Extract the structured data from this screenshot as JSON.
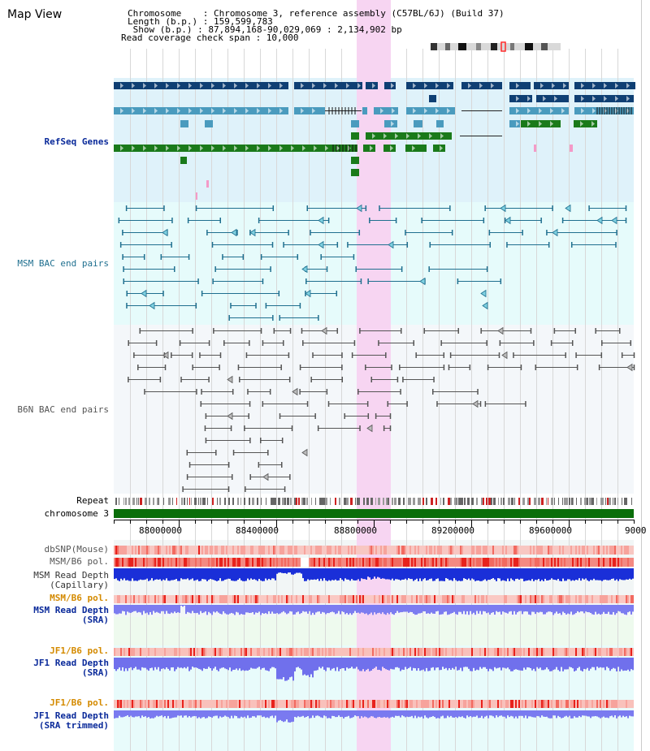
{
  "view_title": "Map View",
  "header": {
    "chromosome_line": "Chromosome    : Chromosome 3, reference assembly (C57BL/6J) (Build 37)",
    "length_line": "Length (b.p.) : 159,599,783",
    "show_line": " Show (b.p.) : 87,894,168-90,029,069 : 2,134,902 bp",
    "coverage_line": "Read coverage check span : 10,000"
  },
  "track_labels": {
    "refseq": "RefSeq Genes",
    "msm_bac": "MSM BAC end pairs",
    "b6n_bac": "B6N BAC end pairs",
    "repeat": "Repeat",
    "chromosome": "chromosome 3",
    "dbsnp": "dbSNP(Mouse)",
    "msm_b6_pol": "MSM/B6 pol.",
    "msm_depth_cap_1": "MSM Read Depth",
    "msm_depth_cap_2": "(Capillary)",
    "msm_b6_pol_2": "MSM/B6 pol.",
    "msm_depth_sra_1": "MSM Read Depth",
    "msm_depth_sra_2": "(SRA)",
    "jf1_b6_pol": "JF1/B6 pol.",
    "jf1_depth_sra_1": "JF1 Read Depth",
    "jf1_depth_sra_2": "(SRA)",
    "jf1_b6_pol_2": "JF1/B6 pol.",
    "jf1_depth_trim_1": "JF1 Read Depth",
    "jf1_depth_trim_2": "(SRA trimmed)"
  },
  "axis_ticks": [
    "88000000",
    "88400000",
    "88800000",
    "89200000",
    "89600000",
    "9000"
  ],
  "colors": {
    "refseq_bg": "#dff2fa",
    "msm_bac_bg": "#e6fbfb",
    "b6n_bac_bg": "#f4f7fa",
    "highlight": "#f7d6f2",
    "gene_dark": "#0f3f73",
    "gene_mid": "#4a9bbe",
    "gene_green": "#1a7a1a",
    "msm_bac_line": "#1f6f8f",
    "b6n_bac_line": "#555555",
    "chromosome_bar": "#0a6e0a",
    "label_blue": "#0a2a9a",
    "label_orange": "#d48a00",
    "label_teal": "#1f6f8f"
  }
}
